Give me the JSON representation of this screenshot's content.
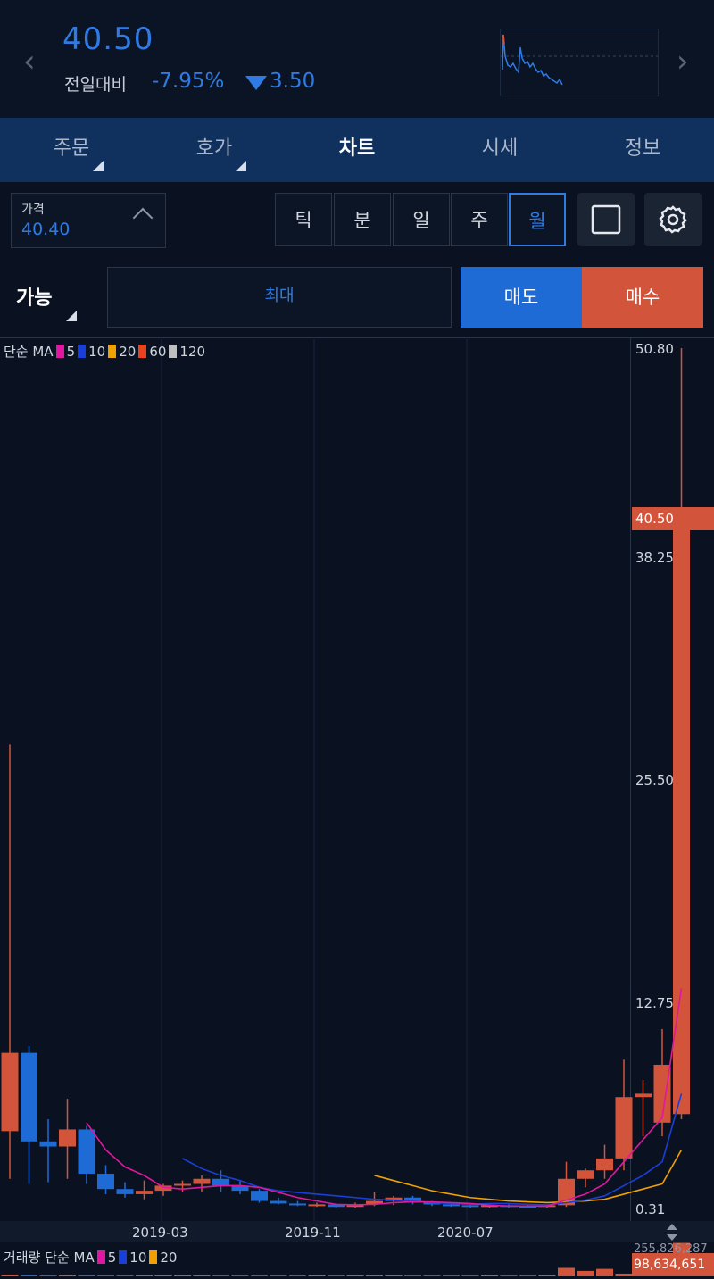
{
  "header": {
    "price": "40.50",
    "change_label": "전일대비",
    "change_pct": "-7.95%",
    "change_abs": "3.50"
  },
  "tabs": [
    {
      "label": "주문"
    },
    {
      "label": "호가"
    },
    {
      "label": "차트"
    },
    {
      "label": "시세"
    },
    {
      "label": "정보"
    }
  ],
  "price_box": {
    "label": "가격",
    "value": "40.40"
  },
  "periods": [
    "틱",
    "분",
    "일",
    "주",
    "월"
  ],
  "active_period": "월",
  "order": {
    "able_label": "가능",
    "max_label": "최대",
    "sell_label": "매도",
    "buy_label": "매수"
  },
  "colors": {
    "up": "#d2543a",
    "down": "#1f6bd6",
    "accent": "#2f7be3"
  },
  "chart": {
    "ma_legend": {
      "prefix": "단순 MA",
      "items": [
        {
          "label": "5",
          "color": "#e0189f"
        },
        {
          "label": "10",
          "color": "#1a3fd6"
        },
        {
          "label": "20",
          "color": "#f0a000"
        },
        {
          "label": "60",
          "color": "#e8431c"
        },
        {
          "label": "120",
          "color": "#bfbfbf"
        }
      ]
    },
    "y_ticks": [
      "50.80",
      "38.25",
      "25.50",
      "12.75",
      "0.31"
    ],
    "current_price": "40.50",
    "x_ticks": [
      "2019-03",
      "2019-11",
      "2020-07"
    ],
    "volume_legend": {
      "prefix": "거래량 단순 MA",
      "items": [
        {
          "label": "5",
          "color": "#e0189f"
        },
        {
          "label": "10",
          "color": "#1a3fd6"
        },
        {
          "label": "20",
          "color": "#f0a000"
        }
      ]
    },
    "volume_max": "255,826,287",
    "volume_current": "98,634,651"
  },
  "chart_data": {
    "type": "candlestick",
    "ylim": [
      0.31,
      50.8
    ],
    "candles": [
      {
        "o": 4.8,
        "h": 27.5,
        "l": 2.0,
        "c": 9.4
      },
      {
        "o": 9.4,
        "h": 9.8,
        "l": 1.7,
        "c": 4.2
      },
      {
        "o": 4.2,
        "h": 5.5,
        "l": 1.8,
        "c": 3.9
      },
      {
        "o": 3.9,
        "h": 6.7,
        "l": 2.0,
        "c": 4.9
      },
      {
        "o": 4.9,
        "h": 5.1,
        "l": 1.7,
        "c": 2.3
      },
      {
        "o": 2.3,
        "h": 2.8,
        "l": 1.1,
        "c": 1.4
      },
      {
        "o": 1.4,
        "h": 1.8,
        "l": 0.9,
        "c": 1.1
      },
      {
        "o": 1.1,
        "h": 1.9,
        "l": 0.8,
        "c": 1.3
      },
      {
        "o": 1.3,
        "h": 1.7,
        "l": 1.0,
        "c": 1.6
      },
      {
        "o": 1.6,
        "h": 1.9,
        "l": 1.2,
        "c": 1.7
      },
      {
        "o": 1.7,
        "h": 2.2,
        "l": 1.2,
        "c": 2.0
      },
      {
        "o": 2.0,
        "h": 2.5,
        "l": 1.2,
        "c": 1.6
      },
      {
        "o": 1.6,
        "h": 1.9,
        "l": 1.1,
        "c": 1.3
      },
      {
        "o": 1.3,
        "h": 1.4,
        "l": 0.6,
        "c": 0.7
      },
      {
        "o": 0.7,
        "h": 0.9,
        "l": 0.5,
        "c": 0.55
      },
      {
        "o": 0.55,
        "h": 0.7,
        "l": 0.4,
        "c": 0.45
      },
      {
        "o": 0.45,
        "h": 0.6,
        "l": 0.35,
        "c": 0.5
      },
      {
        "o": 0.5,
        "h": 0.55,
        "l": 0.3,
        "c": 0.35
      },
      {
        "o": 0.35,
        "h": 0.6,
        "l": 0.3,
        "c": 0.5
      },
      {
        "o": 0.5,
        "h": 1.2,
        "l": 0.4,
        "c": 0.7
      },
      {
        "o": 0.7,
        "h": 1.0,
        "l": 0.45,
        "c": 0.9
      },
      {
        "o": 0.9,
        "h": 1.0,
        "l": 0.5,
        "c": 0.6
      },
      {
        "o": 0.6,
        "h": 0.7,
        "l": 0.4,
        "c": 0.5
      },
      {
        "o": 0.5,
        "h": 0.55,
        "l": 0.35,
        "c": 0.45
      },
      {
        "o": 0.45,
        "h": 0.5,
        "l": 0.3,
        "c": 0.35
      },
      {
        "o": 0.35,
        "h": 0.5,
        "l": 0.3,
        "c": 0.45
      },
      {
        "o": 0.45,
        "h": 0.5,
        "l": 0.3,
        "c": 0.4
      },
      {
        "o": 0.4,
        "h": 0.5,
        "l": 0.3,
        "c": 0.35
      },
      {
        "o": 0.35,
        "h": 0.5,
        "l": 0.31,
        "c": 0.45
      },
      {
        "o": 0.45,
        "h": 3.0,
        "l": 0.35,
        "c": 2.0
      },
      {
        "o": 2.0,
        "h": 2.6,
        "l": 1.5,
        "c": 2.5
      },
      {
        "o": 2.5,
        "h": 4.0,
        "l": 2.0,
        "c": 3.2
      },
      {
        "o": 3.2,
        "h": 9.0,
        "l": 2.5,
        "c": 6.8
      },
      {
        "o": 6.8,
        "h": 7.8,
        "l": 4.5,
        "c": 7.0
      },
      {
        "o": 5.3,
        "h": 10.8,
        "l": 4.5,
        "c": 8.7
      },
      {
        "o": 5.8,
        "h": 50.8,
        "l": 5.5,
        "c": 40.5
      }
    ],
    "ma5": [
      null,
      null,
      null,
      null,
      5.3,
      3.7,
      2.7,
      2.2,
      1.5,
      1.4,
      1.5,
      1.6,
      1.6,
      1.5,
      1.2,
      0.9,
      0.7,
      0.5,
      0.47,
      0.5,
      0.6,
      0.65,
      0.64,
      0.6,
      0.55,
      0.45,
      0.4,
      0.4,
      0.4,
      0.75,
      1.1,
      1.7,
      3.0,
      4.3,
      5.6,
      13.2
    ],
    "ma10": [
      null,
      null,
      null,
      null,
      null,
      null,
      null,
      null,
      null,
      3.2,
      2.6,
      2.2,
      1.9,
      1.5,
      1.3,
      1.2,
      1.1,
      1.0,
      0.9,
      0.8,
      0.75,
      0.7,
      0.6,
      0.55,
      0.5,
      0.55,
      0.55,
      0.5,
      0.47,
      0.6,
      0.75,
      1.0,
      1.6,
      2.2,
      3.0,
      7.0
    ],
    "ma20": [
      null,
      null,
      null,
      null,
      null,
      null,
      null,
      null,
      null,
      null,
      null,
      null,
      null,
      null,
      null,
      null,
      null,
      null,
      null,
      2.2,
      1.9,
      1.6,
      1.3,
      1.1,
      0.9,
      0.8,
      0.7,
      0.65,
      0.6,
      0.65,
      0.7,
      0.8,
      1.1,
      1.4,
      1.7,
      3.7
    ],
    "volume": [
      5,
      4,
      3,
      3,
      3,
      2,
      2,
      2,
      2,
      2,
      2,
      2,
      2,
      1,
      1,
      1,
      1,
      1,
      1,
      2,
      2,
      2,
      1,
      1,
      1,
      1,
      1,
      1,
      1,
      25,
      16,
      22,
      8,
      14,
      10,
      98.6
    ]
  }
}
